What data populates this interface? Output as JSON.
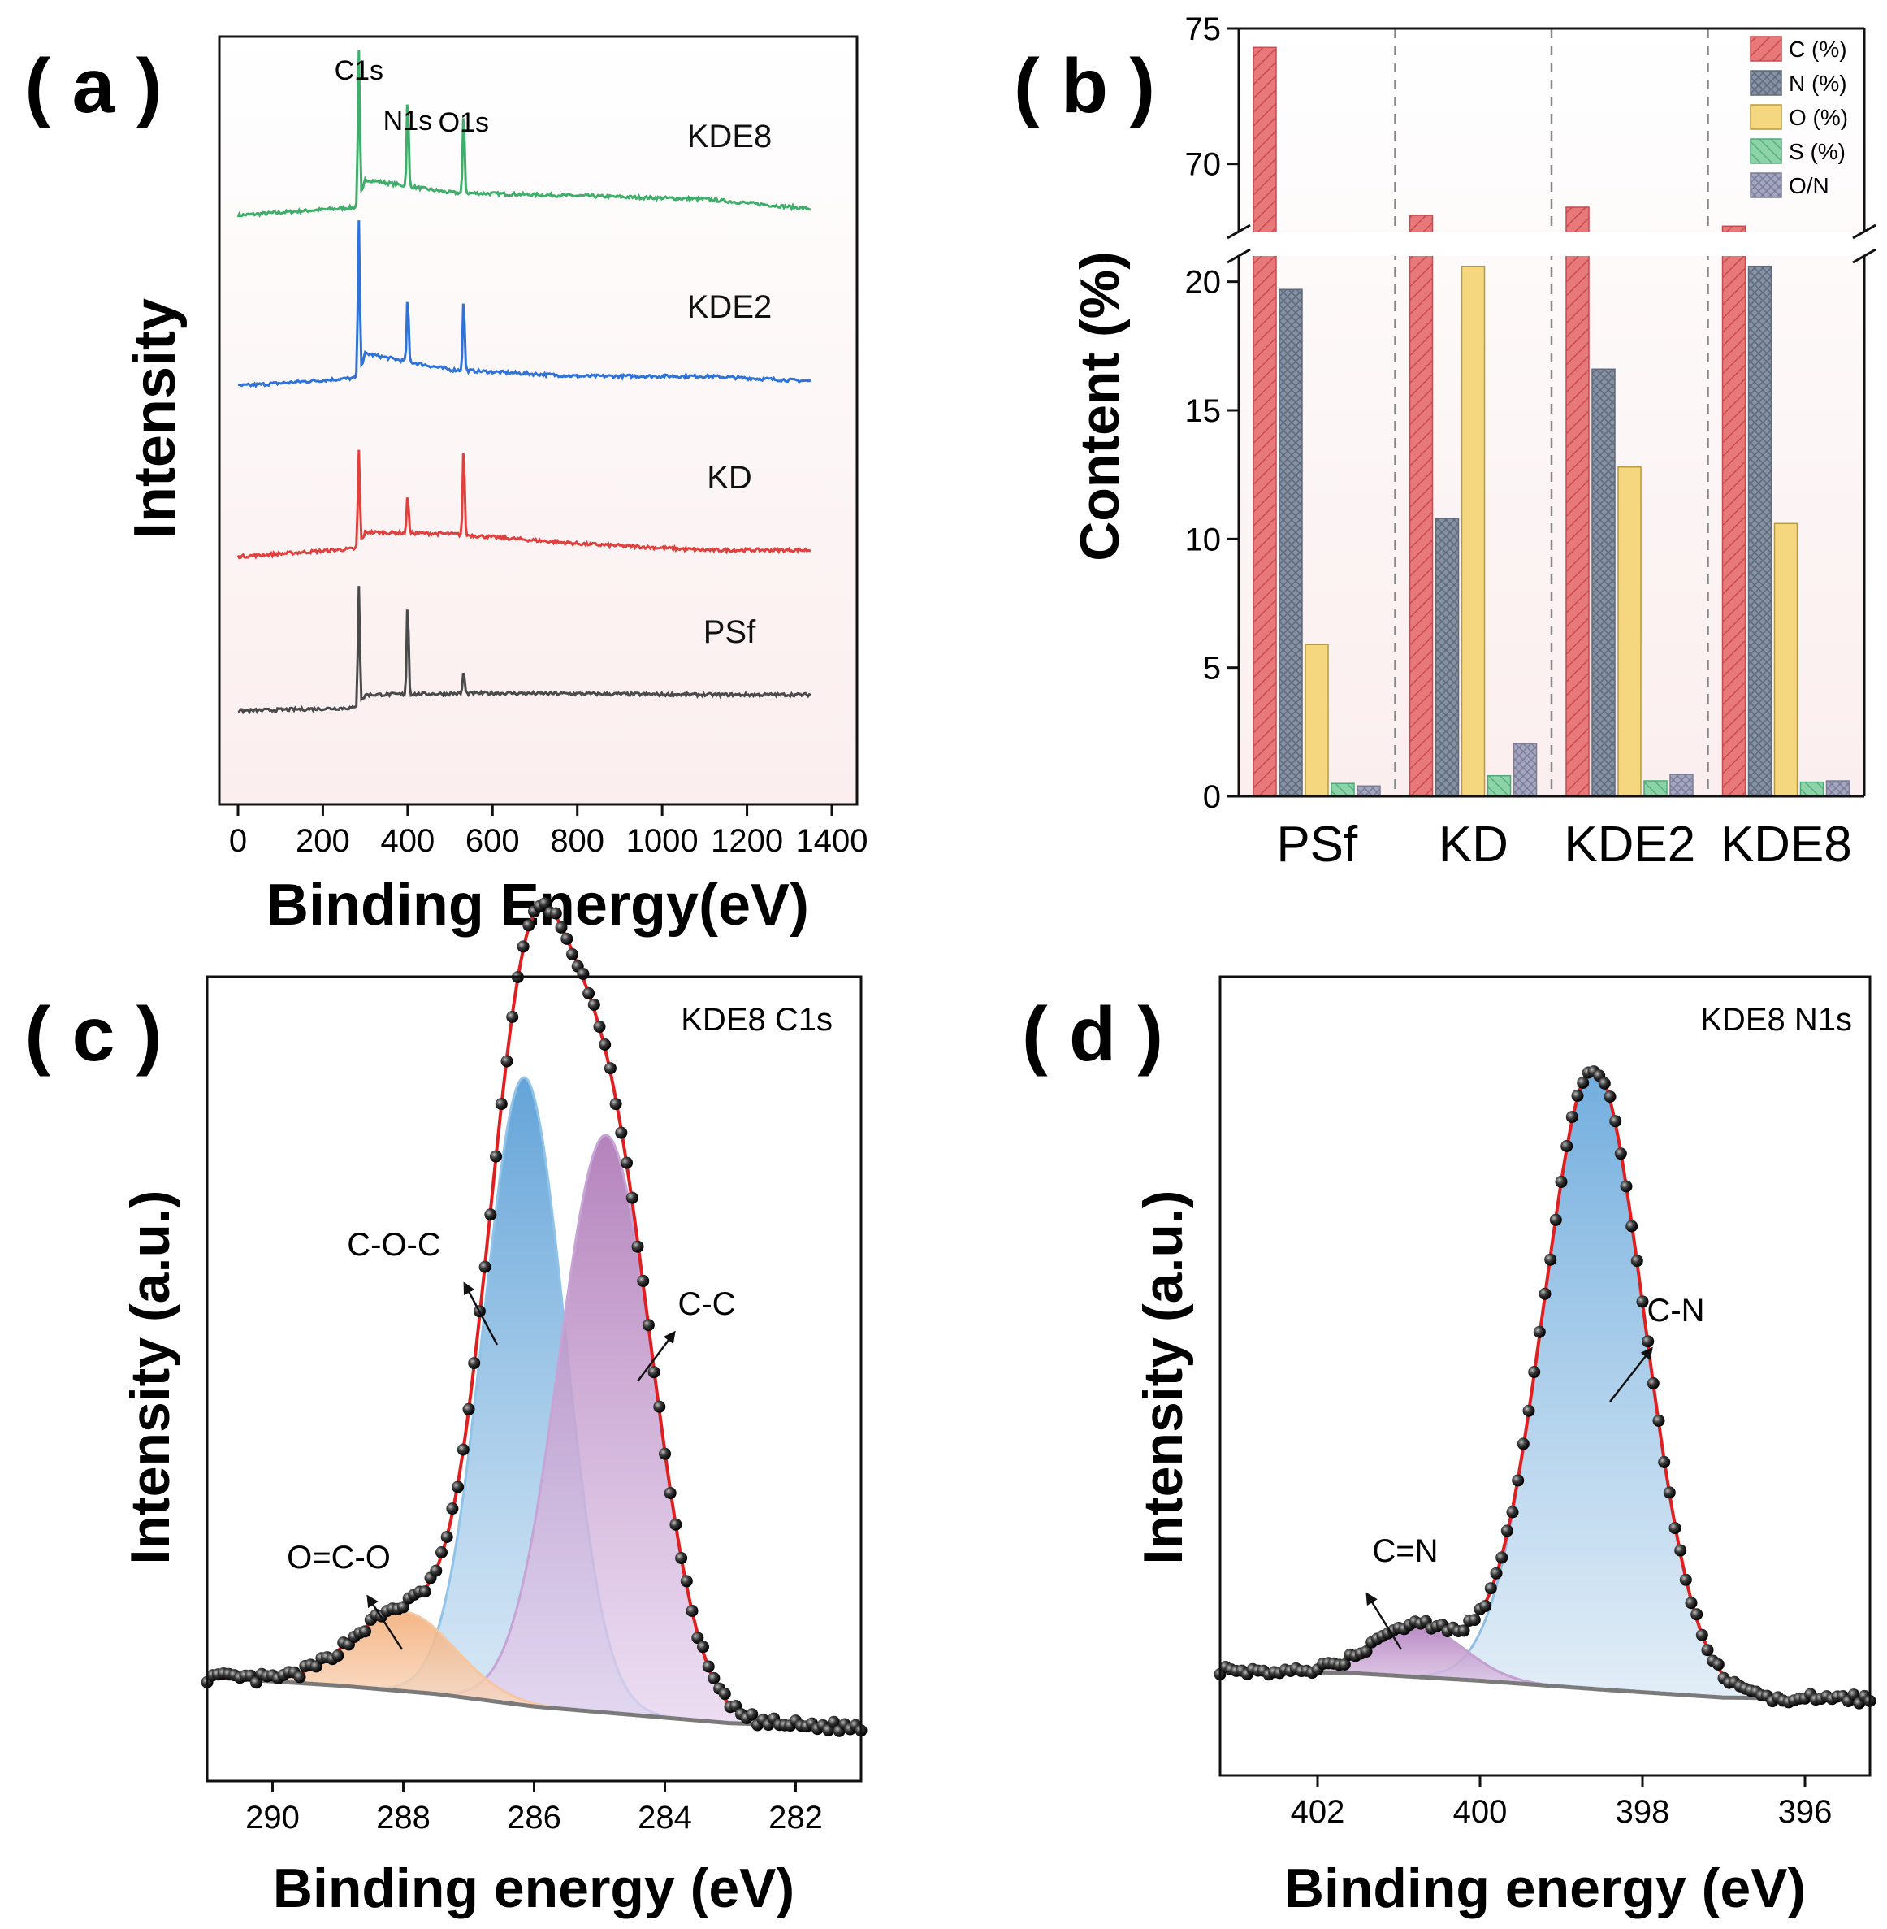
{
  "chart_data": [
    {
      "id": "a",
      "type": "line",
      "panel_label": "( a )",
      "title": "",
      "xlabel": "Binding Energy(eV)",
      "ylabel": "Intensity",
      "xlim": [
        -40,
        1400
      ],
      "xticks": [
        0,
        200,
        400,
        600,
        800,
        1000,
        1200,
        1400
      ],
      "xtick_labels": [
        "0",
        "200",
        "400",
        "600",
        "800",
        "1000",
        "1200",
        "1400"
      ],
      "peak_labels": [
        {
          "text": "C1s",
          "x": 285
        },
        {
          "text": "N1s",
          "x": 400
        },
        {
          "text": "O1s",
          "x": 532
        }
      ],
      "series": [
        {
          "name": "KDE8",
          "color": "#3fae6b",
          "offset": 3.05,
          "peaks": [
            {
              "x": 285,
              "h": 0.95
            },
            {
              "x": 400,
              "h": 0.55
            },
            {
              "x": 532,
              "h": 0.5
            }
          ],
          "baseline": [
            [
              0,
              0.0
            ],
            [
              284,
              0.05
            ],
            [
              300,
              0.22
            ],
            [
              500,
              0.14
            ],
            [
              800,
              0.12
            ],
            [
              1100,
              0.1
            ],
            [
              1350,
              0.04
            ]
          ]
        },
        {
          "name": "KDE2",
          "color": "#2f73d8",
          "offset": 2.0,
          "peaks": [
            {
              "x": 285,
              "h": 0.95
            },
            {
              "x": 400,
              "h": 0.4
            },
            {
              "x": 532,
              "h": 0.45
            }
          ],
          "baseline": [
            [
              0,
              0.0
            ],
            [
              284,
              0.05
            ],
            [
              300,
              0.2
            ],
            [
              500,
              0.1
            ],
            [
              800,
              0.06
            ],
            [
              1100,
              0.06
            ],
            [
              1350,
              0.03
            ]
          ]
        },
        {
          "name": "KD",
          "color": "#e0413e",
          "offset": 0.95,
          "peaks": [
            {
              "x": 285,
              "h": 0.6
            },
            {
              "x": 400,
              "h": 0.25
            },
            {
              "x": 532,
              "h": 0.55
            }
          ],
          "baseline": [
            [
              0,
              0.0
            ],
            [
              284,
              0.05
            ],
            [
              300,
              0.15
            ],
            [
              500,
              0.14
            ],
            [
              800,
              0.08
            ],
            [
              1100,
              0.04
            ],
            [
              1350,
              0.04
            ]
          ]
        },
        {
          "name": "PSf",
          "color": "#4a4a4a",
          "offset": 0.0,
          "peaks": [
            {
              "x": 285,
              "h": 0.75
            },
            {
              "x": 400,
              "h": 0.58
            },
            {
              "x": 532,
              "h": 0.14
            }
          ],
          "baseline": [
            [
              0,
              0.0
            ],
            [
              284,
              0.02
            ],
            [
              300,
              0.1
            ],
            [
              600,
              0.11
            ],
            [
              1100,
              0.1
            ],
            [
              1350,
              0.1
            ]
          ]
        }
      ]
    },
    {
      "id": "b",
      "type": "bar",
      "panel_label": "( b )",
      "title": "",
      "xlabel": "",
      "ylabel": "Content (%)",
      "categories": [
        "PSf",
        "KD",
        "KDE2",
        "KDE8"
      ],
      "broken_axis": {
        "lower_range": [
          0,
          21
        ],
        "upper_range": [
          67.5,
          75
        ]
      },
      "yticks_lower": [
        0,
        5,
        10,
        15,
        20
      ],
      "yticks_upper": [
        70,
        75
      ],
      "series": [
        {
          "name": "C (%)",
          "color": "#e8797b",
          "values": [
            74.3,
            68.1,
            68.4,
            67.7
          ]
        },
        {
          "name": "N (%)",
          "color": "#8592a4",
          "values": [
            19.7,
            10.8,
            16.6,
            20.6
          ]
        },
        {
          "name": "O (%)",
          "color": "#f4d77f",
          "values": [
            5.9,
            20.6,
            12.8,
            10.6
          ]
        },
        {
          "name": "S (%)",
          "color": "#8dd3a8",
          "values": [
            0.5,
            0.8,
            0.6,
            0.55
          ]
        },
        {
          "name": "O/N",
          "color": "#a4a6c0",
          "values": [
            0.4,
            2.05,
            0.85,
            0.6
          ]
        }
      ]
    },
    {
      "id": "c",
      "type": "line",
      "panel_label": "( c )",
      "title": "KDE8 C1s",
      "xlabel": "Binding energy (eV)",
      "ylabel": "Intensity (a.u.)",
      "xlim": [
        291,
        281
      ],
      "xticks": [
        290,
        288,
        286,
        284,
        282
      ],
      "xtick_labels": [
        "290",
        "288",
        "286",
        "284",
        "282"
      ],
      "components": [
        {
          "name": "C-O-C",
          "center": 286.15,
          "height": 0.75,
          "sigma": 0.62,
          "color": "#8fc3e8"
        },
        {
          "name": "C-C",
          "center": 284.9,
          "height": 0.69,
          "sigma": 0.72,
          "color": "#c6a4d6"
        },
        {
          "name": "O=C-O",
          "center": 288.0,
          "height": 0.095,
          "sigma": 0.78,
          "color": "#f5c69f"
        }
      ],
      "background": [
        [
          291,
          0.03
        ],
        [
          289,
          0.02
        ],
        [
          287.5,
          0.01
        ],
        [
          286,
          -0.005
        ],
        [
          284.5,
          -0.015
        ],
        [
          283,
          -0.025
        ],
        [
          281,
          -0.03
        ]
      ],
      "annotations": [
        {
          "text": "C-O-C"
        },
        {
          "text": "C-C"
        },
        {
          "text": "O=C-O"
        }
      ]
    },
    {
      "id": "d",
      "type": "line",
      "panel_label": "( d )",
      "title": "KDE8 N1s",
      "xlabel": "Binding energy (eV)",
      "ylabel": "Intensity (a.u.)",
      "xlim": [
        403.2,
        395.2
      ],
      "xticks": [
        402,
        400,
        398,
        396
      ],
      "xtick_labels": [
        "402",
        "400",
        "398",
        "396"
      ],
      "components": [
        {
          "name": "C-N",
          "center": 398.6,
          "height": 0.85,
          "sigma": 0.62,
          "color": "#8fbde4"
        },
        {
          "name": "C=N",
          "center": 400.75,
          "height": 0.07,
          "sigma": 0.55,
          "color": "#c3a0cf"
        }
      ],
      "background": [
        [
          403.2,
          0.03
        ],
        [
          401.5,
          0.025
        ],
        [
          400,
          0.015
        ],
        [
          398.5,
          0.003
        ],
        [
          397,
          -0.008
        ],
        [
          395.2,
          -0.01
        ]
      ],
      "annotations": [
        {
          "text": "C-N"
        },
        {
          "text": "C=N"
        }
      ]
    }
  ]
}
